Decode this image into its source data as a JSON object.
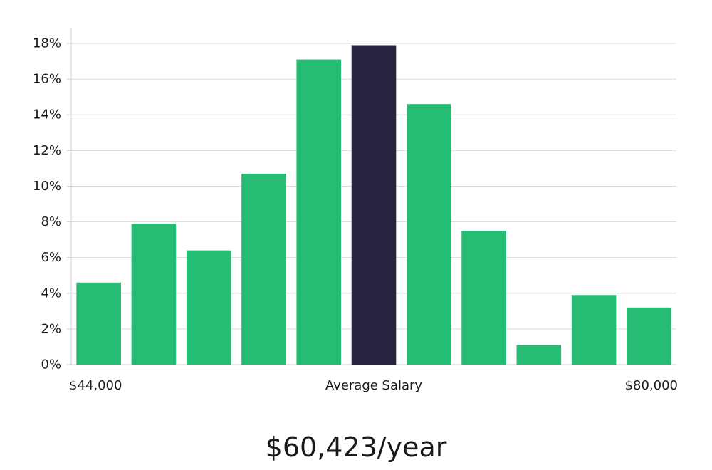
{
  "headline": "$60,423/year",
  "colors": {
    "bar": "#27BC74",
    "highlight": "#27233F",
    "grid": "#dcdcdc",
    "axis": "#cfcfcf",
    "text": "#1a1a1a"
  },
  "chart_data": {
    "type": "bar",
    "values": [
      4.6,
      7.9,
      6.4,
      10.7,
      17.1,
      17.9,
      14.6,
      7.5,
      1.1,
      3.9,
      3.2
    ],
    "highlight_index": 5,
    "ylim": [
      0,
      18
    ],
    "yticks": [
      0,
      2,
      4,
      6,
      8,
      10,
      12,
      14,
      16,
      18
    ],
    "ytick_labels": [
      "0%",
      "2%",
      "4%",
      "6%",
      "8%",
      "10%",
      "12%",
      "14%",
      "16%",
      "18%"
    ],
    "x_labels": {
      "left": "$44,000",
      "center": "Average Salary",
      "right": "$80,000"
    },
    "grid": true
  }
}
